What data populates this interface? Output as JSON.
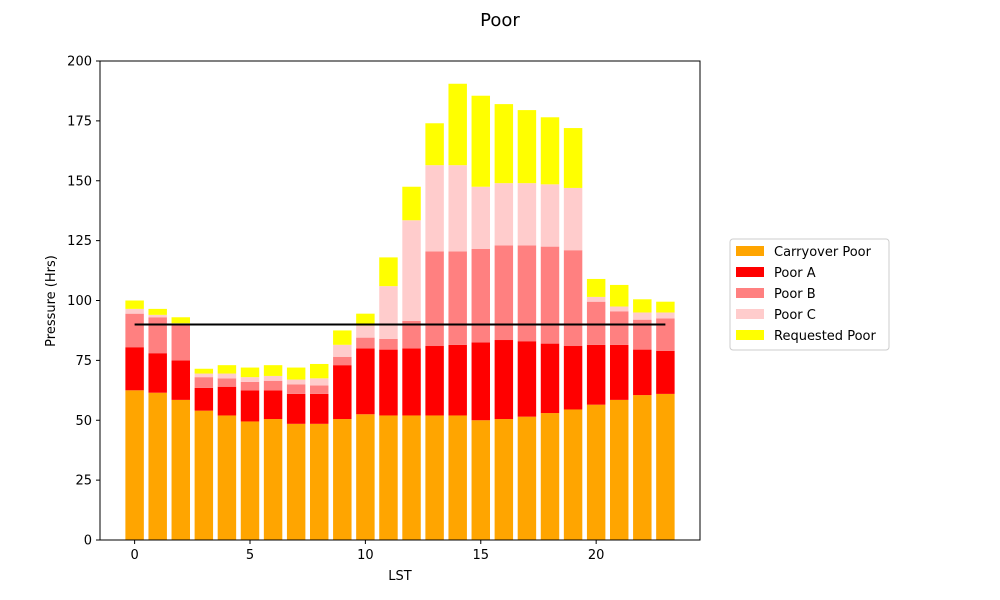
{
  "chart_data": {
    "type": "bar",
    "stacked": true,
    "title": "Poor",
    "xlabel": "LST",
    "ylabel": "Pressure (Hrs)",
    "xlim": [
      -1.5,
      24.5
    ],
    "ylim": [
      0,
      200
    ],
    "xticks": [
      0,
      5,
      10,
      15,
      20
    ],
    "yticks": [
      0,
      25,
      50,
      75,
      100,
      125,
      150,
      175,
      200
    ],
    "grid": false,
    "legend_position": "center-right outside",
    "categories": [
      0,
      1,
      2,
      3,
      4,
      5,
      6,
      7,
      8,
      9,
      10,
      11,
      12,
      13,
      14,
      15,
      16,
      17,
      18,
      19,
      20,
      21,
      22,
      23
    ],
    "series": [
      {
        "name": "Carryover Poor",
        "color": "#ffa500",
        "values": [
          62.5,
          61.5,
          58.5,
          54,
          52,
          49.5,
          50.5,
          48.5,
          48.5,
          50.5,
          52.5,
          52,
          52,
          52,
          52,
          50,
          50.5,
          51.5,
          53,
          54.5,
          56.5,
          58.5,
          60.5,
          61
        ]
      },
      {
        "name": "Poor A",
        "color": "#ff0000",
        "values": [
          18,
          16.5,
          16.5,
          9.5,
          12,
          13,
          12,
          12.5,
          12.5,
          22.5,
          27.5,
          27.5,
          28,
          29,
          29.5,
          32.5,
          33,
          31.5,
          29,
          26.5,
          25,
          23,
          19,
          18
        ]
      },
      {
        "name": "Poor B",
        "color": "#ff8080",
        "values": [
          14,
          15,
          15,
          4.5,
          3.5,
          3.5,
          4,
          4,
          3.5,
          3.5,
          4.5,
          4.5,
          11.5,
          39.5,
          39,
          39,
          39.5,
          40,
          40.5,
          40,
          18,
          14,
          12.5,
          13.5
        ]
      },
      {
        "name": "Poor C",
        "color": "#ffcccc",
        "values": [
          2,
          1,
          0.5,
          1.5,
          2,
          2,
          2,
          2,
          3,
          5,
          5,
          22,
          42,
          36,
          36,
          26,
          26,
          26,
          26,
          26,
          2,
          2,
          3,
          2.5
        ]
      },
      {
        "name": "Requested Poor",
        "color": "#ffff00",
        "values": [
          3.5,
          2.5,
          2.5,
          2,
          3.5,
          4,
          4.5,
          5,
          6,
          6,
          5,
          12,
          14,
          17.5,
          34,
          38,
          33,
          30.5,
          28,
          25,
          7.5,
          9,
          5.5,
          4.5
        ]
      }
    ],
    "reference_line": {
      "y": 90,
      "x_start": 0,
      "x_end": 23,
      "color": "#000000"
    }
  }
}
